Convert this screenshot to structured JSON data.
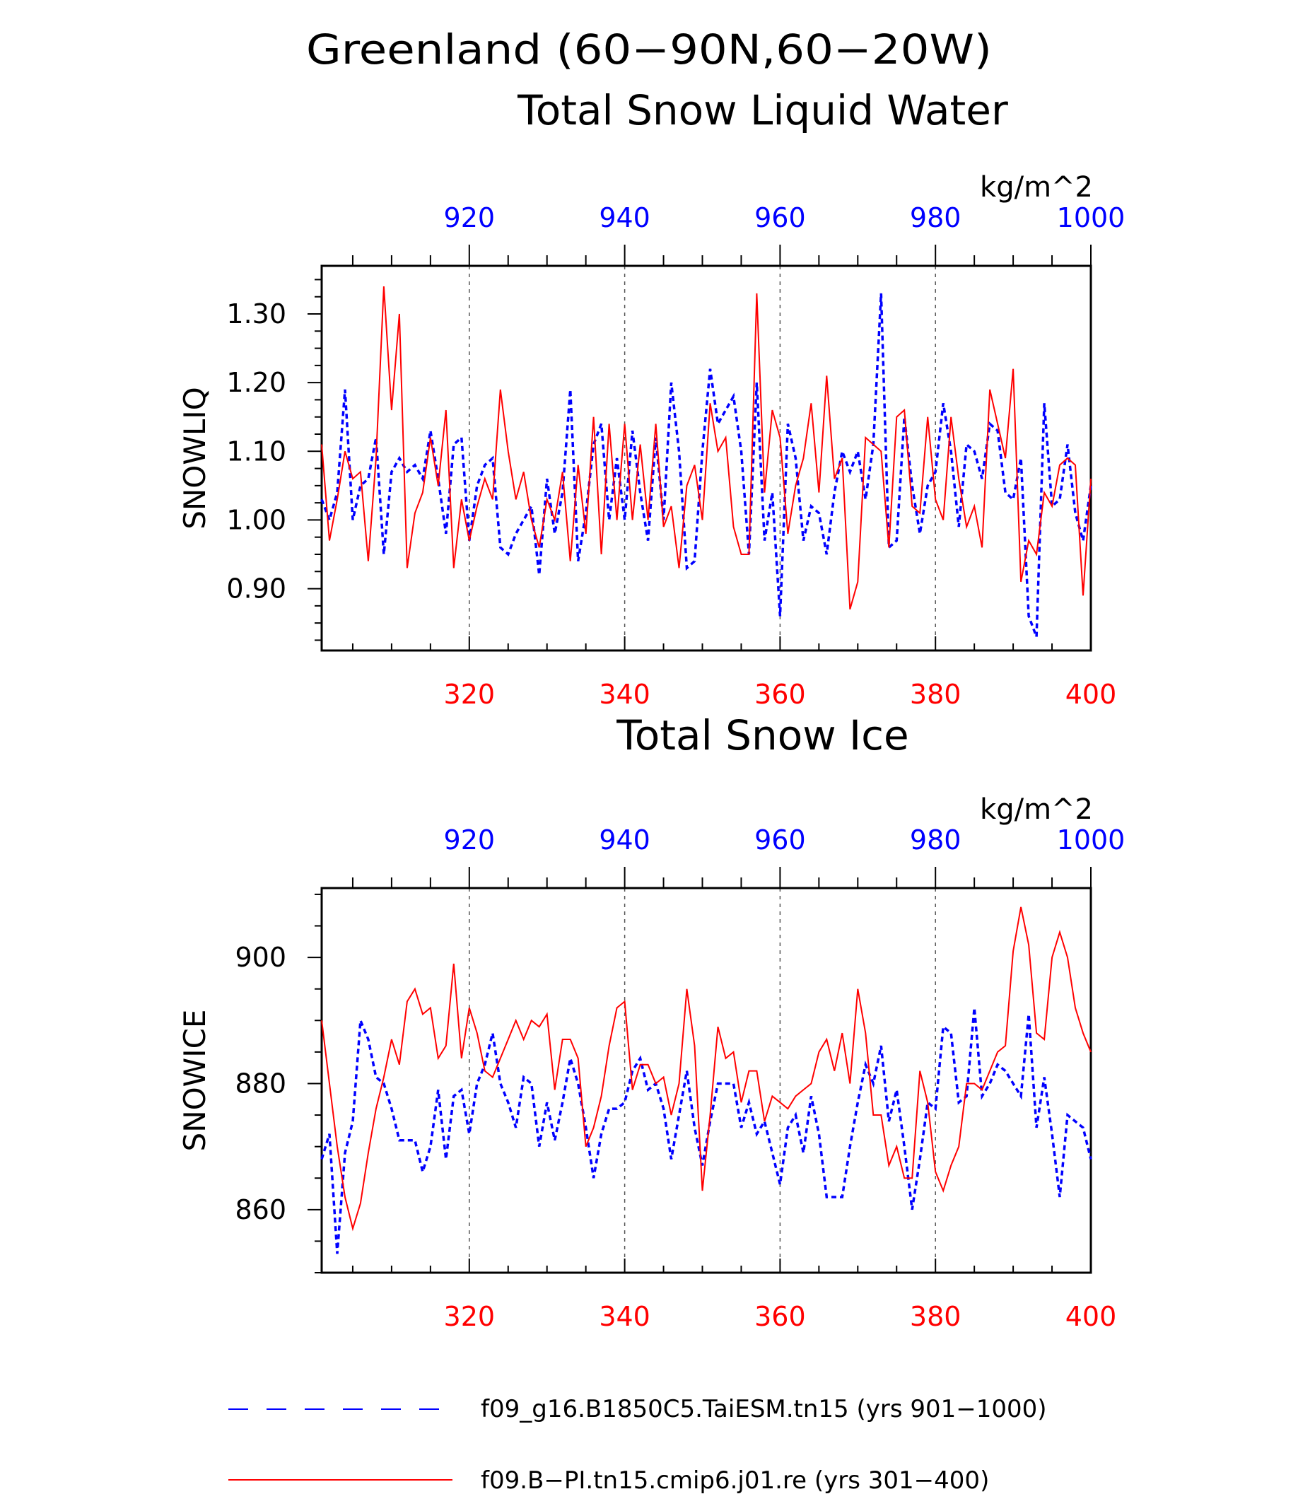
{
  "title": {
    "line1": "Greenland (60−90N,60−20W)"
  },
  "colors": {
    "blue": "#0000ff",
    "red": "#ff0000",
    "axis": "#000000",
    "grid": "#555555"
  },
  "legend": {
    "position": "bottom",
    "items": [
      {
        "label": "f09_g16.B1850C5.TaiESM.tn15 (yrs 901−1000)",
        "color": "#0000ff",
        "dash": "dashed"
      },
      {
        "label": "f09.B−PI.tn15.cmip6.j01.re (yrs 301−400)",
        "color": "#ff0000",
        "dash": "solid"
      }
    ]
  },
  "chart_data": [
    {
      "type": "line",
      "title": "Total Snow Liquid Water",
      "units": "kg/m^2",
      "ylabel": "SNOWLIQ",
      "ylim": [
        0.81,
        1.37
      ],
      "yticks": [
        0.9,
        1.0,
        1.1,
        1.2,
        1.3
      ],
      "ytick_labels": [
        "0.90",
        "1.00",
        "1.10",
        "1.20",
        "1.30"
      ],
      "bottom_axis": {
        "xlim": [
          301,
          400
        ],
        "ticks": [
          320,
          340,
          360,
          380,
          400
        ]
      },
      "top_axis": {
        "xlim": [
          901,
          1000
        ],
        "ticks": [
          920,
          940,
          960,
          980,
          1000
        ]
      },
      "grid": "vertical dashed at major x ticks",
      "series": [
        {
          "name": "f09_g16.B1850C5.TaiESM.tn15 (yrs 901−1000)",
          "axis": "top",
          "x_start": 901,
          "values": [
            1.03,
            1.0,
            1.04,
            1.19,
            1.0,
            1.05,
            1.06,
            1.12,
            0.95,
            1.07,
            1.09,
            1.07,
            1.08,
            1.06,
            1.13,
            1.06,
            0.98,
            1.11,
            1.12,
            0.97,
            1.05,
            1.08,
            1.09,
            0.96,
            0.95,
            0.98,
            1.0,
            1.02,
            0.92,
            1.06,
            0.98,
            1.04,
            1.19,
            0.94,
            1.01,
            1.11,
            1.14,
            1.0,
            1.09,
            1.0,
            1.13,
            1.04,
            0.97,
            1.12,
            1.0,
            1.2,
            1.1,
            0.93,
            0.94,
            1.1,
            1.22,
            1.14,
            1.16,
            1.18,
            1.1,
            0.95,
            1.2,
            0.97,
            1.04,
            0.86,
            1.14,
            1.09,
            0.97,
            1.02,
            1.01,
            0.95,
            1.04,
            1.1,
            1.07,
            1.1,
            1.03,
            1.11,
            1.33,
            0.96,
            0.97,
            1.15,
            1.05,
            0.98,
            1.05,
            1.07,
            1.17,
            1.1,
            0.99,
            1.11,
            1.1,
            1.06,
            1.14,
            1.13,
            1.04,
            1.03,
            1.09,
            0.86,
            0.83,
            1.17,
            1.02,
            1.03,
            1.11,
            1.01,
            0.97,
            1.05
          ]
        },
        {
          "name": "f09.B−PI.tn15.cmip6.j01.re (yrs 301−400)",
          "axis": "bottom",
          "x_start": 301,
          "values": [
            1.11,
            0.97,
            1.03,
            1.1,
            1.06,
            1.07,
            0.94,
            1.09,
            1.34,
            1.16,
            1.3,
            0.93,
            1.01,
            1.04,
            1.12,
            1.05,
            1.16,
            0.93,
            1.03,
            0.97,
            1.02,
            1.06,
            1.03,
            1.19,
            1.1,
            1.03,
            1.07,
            1.0,
            0.96,
            1.03,
            1.0,
            1.07,
            0.94,
            1.08,
            0.98,
            1.15,
            0.95,
            1.14,
            1.0,
            1.14,
            1.0,
            1.11,
            1.0,
            1.14,
            0.99,
            1.02,
            0.93,
            1.05,
            1.08,
            1.0,
            1.17,
            1.1,
            1.12,
            0.99,
            0.95,
            0.95,
            1.33,
            1.04,
            1.16,
            1.12,
            0.98,
            1.05,
            1.09,
            1.17,
            1.04,
            1.21,
            1.06,
            1.09,
            0.87,
            0.91,
            1.12,
            1.11,
            1.1,
            0.96,
            1.15,
            1.16,
            1.02,
            1.01,
            1.15,
            1.03,
            1.0,
            1.15,
            1.06,
            0.99,
            1.02,
            0.96,
            1.19,
            1.14,
            1.09,
            1.22,
            0.91,
            0.97,
            0.95,
            1.04,
            1.02,
            1.08,
            1.09,
            1.08,
            0.89,
            1.06
          ]
        }
      ]
    },
    {
      "type": "line",
      "title": "Total Snow Ice",
      "units": "kg/m^2",
      "ylabel": "SNOWICE",
      "ylim": [
        850,
        911
      ],
      "yticks": [
        860,
        880,
        900
      ],
      "ytick_labels": [
        "860",
        "880",
        "900"
      ],
      "bottom_axis": {
        "xlim": [
          301,
          400
        ],
        "ticks": [
          320,
          340,
          360,
          380,
          400
        ]
      },
      "top_axis": {
        "xlim": [
          901,
          1000
        ],
        "ticks": [
          920,
          940,
          960,
          980,
          1000
        ]
      },
      "grid": "vertical dashed at major x ticks",
      "series": [
        {
          "name": "f09_g16.B1850C5.TaiESM.tn15 (yrs 901−1000)",
          "axis": "top",
          "x_start": 901,
          "values": [
            868,
            872,
            853,
            869,
            874,
            890,
            887,
            881,
            880,
            876,
            871,
            871,
            871,
            866,
            870,
            879,
            868,
            878,
            879,
            872,
            880,
            883,
            888,
            880,
            877,
            873,
            881,
            880,
            870,
            877,
            871,
            877,
            884,
            880,
            873,
            865,
            872,
            876,
            876,
            877,
            882,
            884,
            879,
            880,
            876,
            868,
            875,
            882,
            873,
            867,
            874,
            880,
            880,
            880,
            873,
            877,
            872,
            874,
            869,
            864,
            873,
            875,
            869,
            878,
            872,
            862,
            862,
            862,
            870,
            877,
            883,
            880,
            886,
            874,
            879,
            870,
            860,
            868,
            877,
            876,
            889,
            888,
            877,
            878,
            892,
            878,
            880,
            883,
            882,
            880,
            878,
            891,
            873,
            881,
            872,
            862,
            875,
            874,
            873,
            868
          ]
        },
        {
          "name": "f09.B−PI.tn15.cmip6.j01.re (yrs 301−400)",
          "axis": "bottom",
          "x_start": 301,
          "values": [
            890,
            880,
            870,
            862,
            857,
            861,
            869,
            876,
            881,
            887,
            883,
            893,
            895,
            891,
            892,
            884,
            886,
            899,
            884,
            892,
            888,
            882,
            881,
            884,
            887,
            890,
            887,
            890,
            889,
            891,
            879,
            887,
            887,
            884,
            870,
            873,
            878,
            886,
            892,
            893,
            879,
            883,
            883,
            880,
            881,
            875,
            880,
            895,
            886,
            863,
            875,
            889,
            884,
            885,
            877,
            882,
            882,
            874,
            878,
            877,
            876,
            878,
            879,
            880,
            885,
            887,
            882,
            888,
            880,
            895,
            888,
            875,
            875,
            867,
            870,
            865,
            865,
            882,
            877,
            866,
            863,
            867,
            870,
            880,
            880,
            879,
            882,
            885,
            886,
            901,
            908,
            902,
            888,
            887,
            900,
            904,
            900,
            892,
            888,
            885
          ]
        }
      ]
    }
  ]
}
